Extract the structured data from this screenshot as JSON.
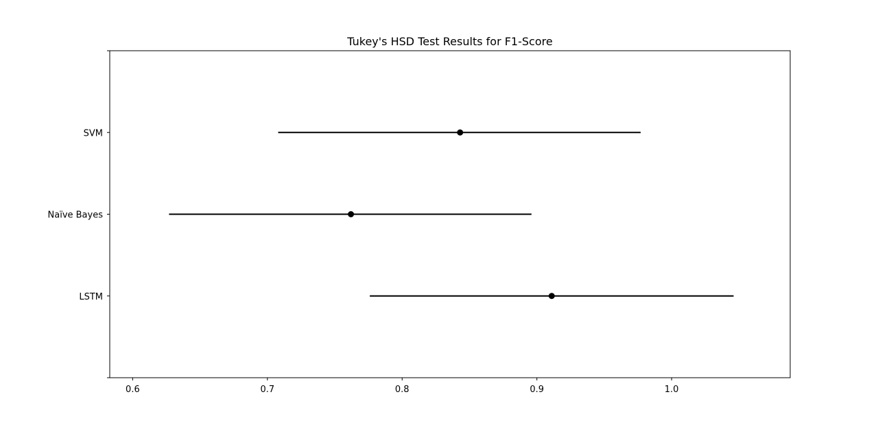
{
  "chart_data": {
    "type": "scatter",
    "title": "Tukey's HSD Test Results for F1-Score",
    "xlabel": "",
    "ylabel": "",
    "xlim": [
      0.583,
      1.088
    ],
    "x_ticks": [
      "0.6",
      "0.7",
      "0.8",
      "0.9",
      "1.0"
    ],
    "groups": [
      {
        "label": "SVM",
        "mean": 0.843,
        "lower": 0.708,
        "upper": 0.977
      },
      {
        "label": "Naïve Bayes",
        "mean": 0.762,
        "lower": 0.627,
        "upper": 0.896
      },
      {
        "label": "LSTM",
        "mean": 0.911,
        "lower": 0.776,
        "upper": 1.046
      }
    ],
    "grid": false,
    "colors": {
      "marker": "#000000",
      "line": "#000000"
    }
  }
}
